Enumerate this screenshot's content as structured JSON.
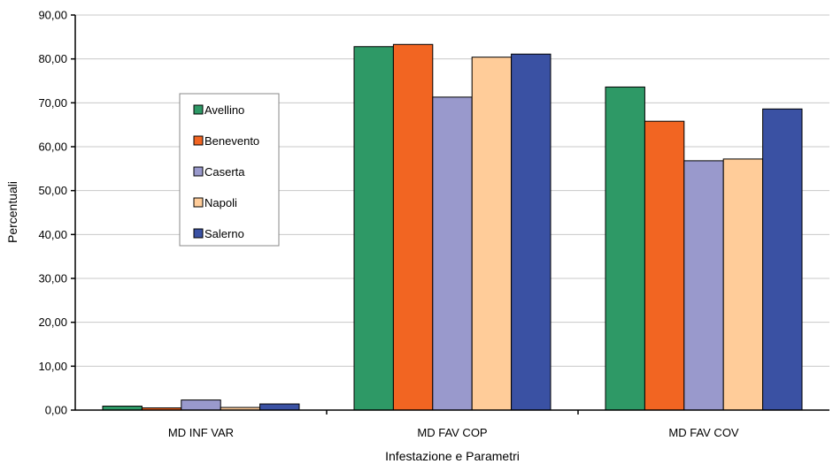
{
  "chart_data": {
    "type": "bar",
    "title": "",
    "xlabel": "Infestazione e Parametri",
    "ylabel": "Percentuali",
    "categories": [
      "MD INF VAR",
      "MD FAV COP",
      "MD FAV COV"
    ],
    "y_ticks": [
      "0,00",
      "10,00",
      "20,00",
      "30,00",
      "40,00",
      "50,00",
      "60,00",
      "70,00",
      "80,00",
      "90,00"
    ],
    "ylim": [
      0,
      90
    ],
    "grid": true,
    "legend_position": "left",
    "series": [
      {
        "name": "Avellino",
        "color": "#2e9966",
        "values": [
          0.9,
          82.8,
          73.6
        ]
      },
      {
        "name": "Benevento",
        "color": "#f26522",
        "values": [
          0.5,
          83.3,
          65.8
        ]
      },
      {
        "name": "Caserta",
        "color": "#9999cc",
        "values": [
          2.3,
          71.3,
          56.8
        ]
      },
      {
        "name": "Napoli",
        "color": "#ffcc99",
        "values": [
          0.6,
          80.4,
          57.2
        ]
      },
      {
        "name": "Salerno",
        "color": "#3a51a3",
        "values": [
          1.4,
          81.1,
          68.6
        ]
      }
    ]
  }
}
